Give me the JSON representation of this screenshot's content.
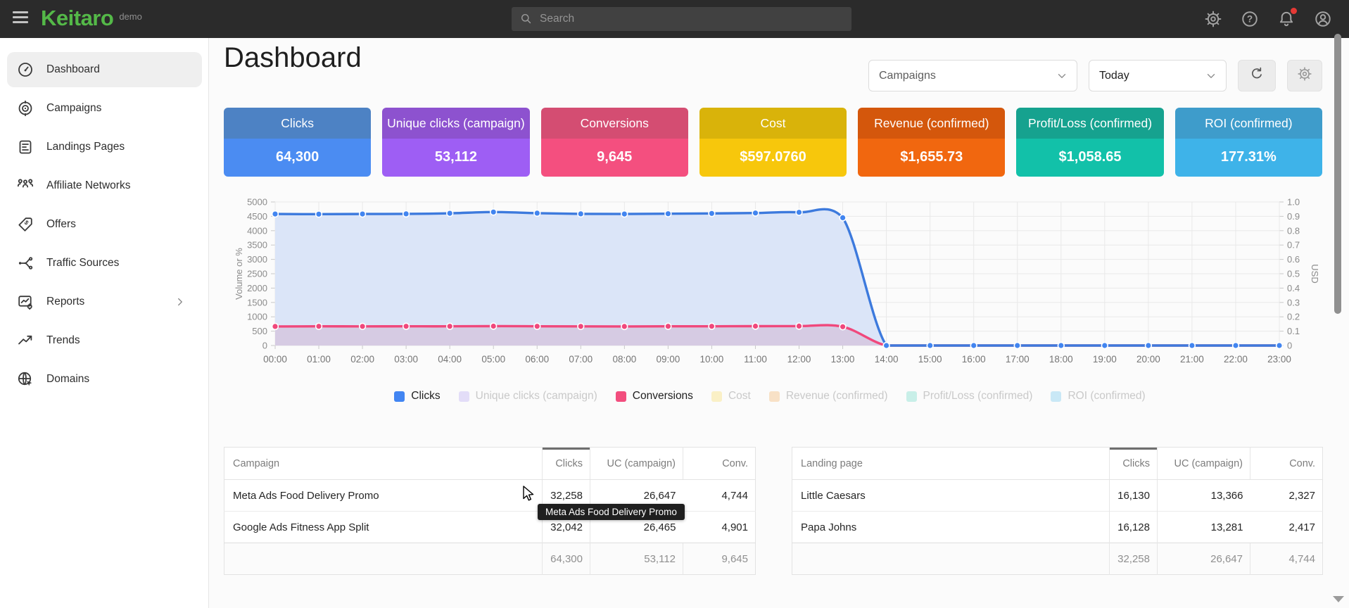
{
  "topbar": {
    "logo": "Keitaro",
    "env_label": "demo",
    "search": {
      "placeholder": "Search"
    },
    "icons": [
      {
        "name": "settings"
      },
      {
        "name": "help"
      },
      {
        "name": "notifications",
        "badge": true
      },
      {
        "name": "account"
      }
    ]
  },
  "sidebar": {
    "items": [
      {
        "label": "Dashboard",
        "icon": "dashboard",
        "active": true
      },
      {
        "label": "Campaigns",
        "icon": "campaigns",
        "active": false
      },
      {
        "label": "Landings Pages",
        "icon": "landings",
        "active": false
      },
      {
        "label": "Affiliate Networks",
        "icon": "affiliate",
        "active": false
      },
      {
        "label": "Offers",
        "icon": "offers",
        "active": false
      },
      {
        "label": "Traffic Sources",
        "icon": "traffic",
        "active": false
      },
      {
        "label": "Reports",
        "icon": "reports",
        "active": false,
        "chevron": true
      },
      {
        "label": "Trends",
        "icon": "trends",
        "active": false
      },
      {
        "label": "Domains",
        "icon": "domains",
        "active": false
      }
    ]
  },
  "page": {
    "title": "Dashboard",
    "filters": {
      "campaigns": "Campaigns",
      "date_range": "Today"
    }
  },
  "cards": [
    {
      "label": "Clicks",
      "value": "64,300",
      "header_color": "#4d82c4",
      "body_color": "#4b8cf2"
    },
    {
      "label": "Unique clicks (campaign)",
      "value": "53,112",
      "header_color": "#8d52cf",
      "body_color": "#9e5ef4"
    },
    {
      "label": "Conversions",
      "value": "9,645",
      "header_color": "#d44d72",
      "body_color": "#f44f7f"
    },
    {
      "label": "Cost",
      "value": "$597.0760",
      "header_color": "#d9b30a",
      "body_color": "#f7c70c"
    },
    {
      "label": "Revenue (confirmed)",
      "value": "$1,655.73",
      "header_color": "#d4570c",
      "body_color": "#f1670f"
    },
    {
      "label": "Profit/Loss (confirmed)",
      "value": "$1,058.65",
      "header_color": "#16a28f",
      "body_color": "#12c1a9"
    },
    {
      "label": "ROI (confirmed)",
      "value": "177.31%",
      "header_color": "#3e9ccb",
      "body_color": "#3eb3e9"
    }
  ],
  "chart_data": {
    "type": "line",
    "x": [
      "00:00",
      "01:00",
      "02:00",
      "03:00",
      "04:00",
      "05:00",
      "06:00",
      "07:00",
      "08:00",
      "09:00",
      "10:00",
      "11:00",
      "12:00",
      "13:00",
      "14:00",
      "15:00",
      "16:00",
      "17:00",
      "18:00",
      "19:00",
      "20:00",
      "21:00",
      "22:00",
      "23:00"
    ],
    "ylabel_left": "Volume or %",
    "ylabel_right": "USD",
    "ylim_left": [
      0,
      5000
    ],
    "left_tick_step": 500,
    "ylim_right": [
      0,
      1.0
    ],
    "right_tick_step": 0.1,
    "grid": true,
    "series": [
      {
        "name": "Clicks",
        "color": "#3d7add",
        "marker_color": "#4285f0",
        "fill_color": "#dbe5f8",
        "values": [
          4580,
          4575,
          4580,
          4585,
          4605,
          4650,
          4610,
          4585,
          4580,
          4590,
          4600,
          4615,
          4640,
          4450,
          0,
          0,
          0,
          0,
          0,
          0,
          0,
          0,
          0,
          0
        ]
      },
      {
        "name": "Conversions",
        "color": "#f0487c",
        "marker_color": "#f0487c",
        "fill_color": "#d6cbe3",
        "values": [
          665,
          668,
          666,
          670,
          668,
          675,
          670,
          666,
          665,
          668,
          670,
          673,
          676,
          655,
          0,
          0,
          0,
          0,
          0,
          0,
          0,
          0,
          0,
          0
        ]
      }
    ],
    "legend": [
      {
        "label": "Clicks",
        "swatch": "#4285f2",
        "active": true
      },
      {
        "label": "Unique clicks (campaign)",
        "swatch": "#e3ddf8",
        "active": false
      },
      {
        "label": "Conversions",
        "swatch": "#f24e7e",
        "active": true
      },
      {
        "label": "Cost",
        "swatch": "#faf0c6",
        "active": false
      },
      {
        "label": "Revenue (confirmed)",
        "swatch": "#f8e1c6",
        "active": false
      },
      {
        "label": "Profit/Loss (confirmed)",
        "swatch": "#c8efe8",
        "active": false
      },
      {
        "label": "ROI (confirmed)",
        "swatch": "#c9e8f6",
        "active": false
      }
    ]
  },
  "tables": [
    {
      "name": "campaigns",
      "headers": [
        "Campaign",
        "Clicks",
        "UC (campaign)",
        "Conv."
      ],
      "sorted_column": "Clicks",
      "rows": [
        [
          "Meta Ads Food Delivery Promo",
          "32,258",
          "26,647",
          "4,744"
        ],
        [
          "Google Ads Fitness App Split",
          "32,042",
          "26,465",
          "4,901"
        ]
      ],
      "totals": [
        "",
        "64,300",
        "53,112",
        "9,645"
      ]
    },
    {
      "name": "landing-pages",
      "headers": [
        "Landing page",
        "Clicks",
        "UC (campaign)",
        "Conv."
      ],
      "sorted_column": "Clicks",
      "rows": [
        [
          "Little Caesars",
          "16,130",
          "13,366",
          "2,327"
        ],
        [
          "Papa Johns",
          "16,128",
          "13,281",
          "2,417"
        ]
      ],
      "totals": [
        "",
        "32,258",
        "26,647",
        "4,744"
      ]
    }
  ],
  "tooltip": {
    "text": "Meta Ads Food Delivery Promo"
  }
}
